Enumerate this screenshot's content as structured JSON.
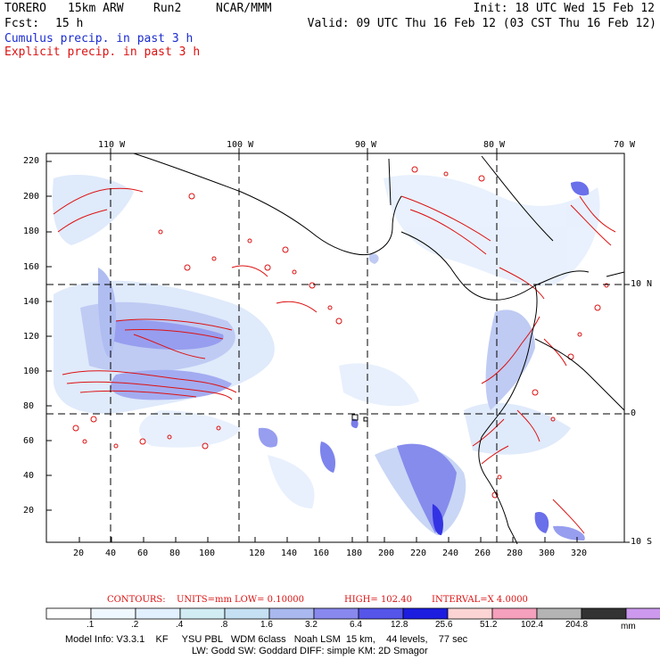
{
  "header": {
    "product": "TORERO",
    "model_res": "15km ARW",
    "run": "Run2",
    "org": "NCAR/MMM",
    "init": "Init: 18 UTC Wed 15 Feb 12",
    "fcst_label": "Fcst:",
    "fcst_value": "15 h",
    "valid": "Valid: 09 UTC Thu 16 Feb 12 (03 CST Thu 16 Feb 12)",
    "cumulus": "Cumulus precip. in past 3 h",
    "explicit": "Explicit precip. in past 3 h"
  },
  "map": {
    "top_lon_labels": [
      "110 W",
      "100 W",
      "90 W",
      "80 W",
      "70 W"
    ],
    "right_lat_labels": [
      "10 N",
      "0",
      "10 S"
    ],
    "y_ticks": [
      "220",
      "200",
      "180",
      "160",
      "140",
      "120",
      "100",
      "80",
      "60",
      "40",
      "20"
    ],
    "x_ticks": [
      "20",
      "40",
      "60",
      "80",
      "100",
      "120",
      "140",
      "160",
      "180",
      "200",
      "220",
      "240",
      "260",
      "280",
      "300",
      "320"
    ]
  },
  "contours_line": {
    "label": "CONTOURS:",
    "units": "UNITS=mm",
    "low": "LOW= 0.10000",
    "high": "HIGH= 102.40",
    "interval": "INTERVAL=X 4.0000"
  },
  "colorbar": {
    "colors": [
      "#ffffff",
      "#f0f8ff",
      "#e2f0ff",
      "#d2ecf4",
      "#c5e0f2",
      "#a9b8ee",
      "#8888ee",
      "#5555ea",
      "#1d1de0",
      "#fcd4d4",
      "#f5a0bc",
      "#b4b4b4",
      "#333333",
      "#cc99ee"
    ],
    "labels": [
      ".1",
      ".2",
      ".4",
      ".8",
      "1.6",
      "3.2",
      "6.4",
      "12.8",
      "25.6",
      "51.2",
      "102.4",
      "204.8"
    ],
    "unit": "mm"
  },
  "model_info": {
    "line1": "Model Info: V3.3.1    KF     YSU PBL   WDM 6class   Noah LSM  15 km,    44 levels,    77 sec",
    "line2": "LW: Godd SW: Goddard DIFF: simple KM: 2D Smagor"
  }
}
